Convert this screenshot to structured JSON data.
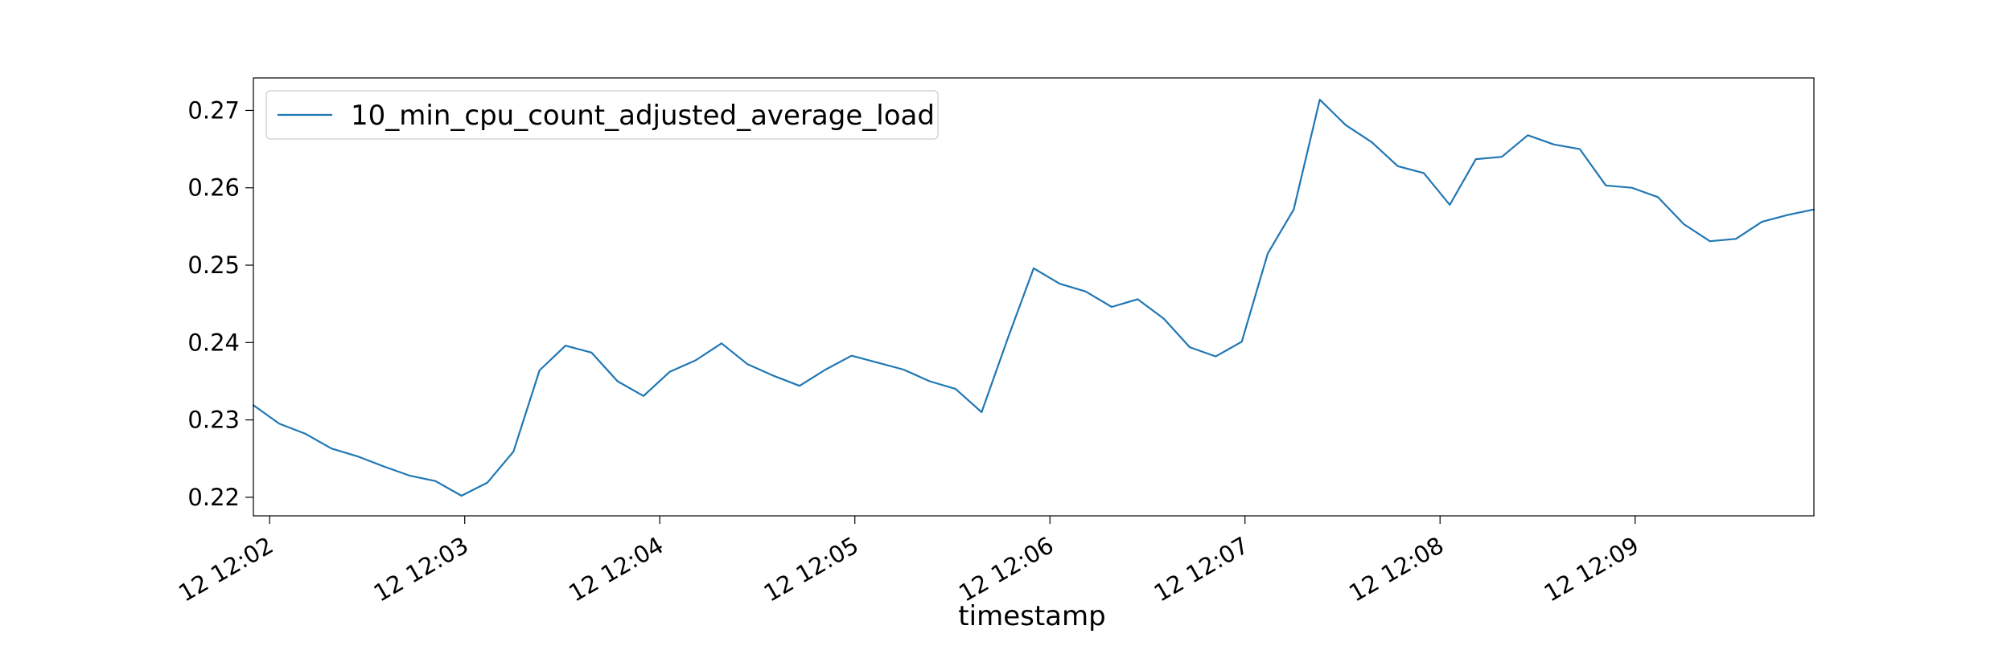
{
  "chart_data": {
    "type": "line",
    "title": "",
    "xlabel": "timestamp",
    "ylabel": "",
    "grid": false,
    "legend_position": "upper left",
    "colors": {
      "series": "#1f77b4",
      "axes": "#000000",
      "background": "#ffffff",
      "legend_border": "#cccccc"
    },
    "xlim": [
      "12:01:55",
      "12:09:55"
    ],
    "ylim": [
      0.2176,
      0.2742
    ],
    "x_ticks": [
      "12:02:00",
      "12:03:00",
      "12:04:00",
      "12:05:00",
      "12:06:00",
      "12:07:00",
      "12:08:00",
      "12:09:00"
    ],
    "x_tick_labels": [
      "12 12:02",
      "12 12:03",
      "12 12:04",
      "12 12:05",
      "12 12:06",
      "12 12:07",
      "12 12:08",
      "12 12:09"
    ],
    "y_ticks": [
      0.22,
      0.23,
      0.24,
      0.25,
      0.26,
      0.27
    ],
    "y_tick_labels": [
      "0.22",
      "0.23",
      "0.24",
      "0.25",
      "0.26",
      "0.27"
    ],
    "series": [
      {
        "name": "10_min_cpu_count_adjusted_average_load",
        "x": [
          "12:01:55",
          "12:02:03",
          "12:02:11",
          "12:02:19",
          "12:02:27",
          "12:02:35",
          "12:02:43",
          "12:02:51",
          "12:02:59",
          "12:03:07",
          "12:03:15",
          "12:03:23",
          "12:03:31",
          "12:03:39",
          "12:03:47",
          "12:03:55",
          "12:04:03",
          "12:04:11",
          "12:04:19",
          "12:04:27",
          "12:04:35",
          "12:04:43",
          "12:04:51",
          "12:04:59",
          "12:05:07",
          "12:05:15",
          "12:05:23",
          "12:05:31",
          "12:05:39",
          "12:05:47",
          "12:05:55",
          "12:06:03",
          "12:06:11",
          "12:06:19",
          "12:06:27",
          "12:06:35",
          "12:06:43",
          "12:06:51",
          "12:06:59",
          "12:07:07",
          "12:07:15",
          "12:07:23",
          "12:07:31",
          "12:07:39",
          "12:07:47",
          "12:07:55",
          "12:08:03",
          "12:08:11",
          "12:08:19",
          "12:08:27",
          "12:08:35",
          "12:08:43",
          "12:08:51",
          "12:08:59",
          "12:09:07",
          "12:09:15",
          "12:09:23",
          "12:09:31",
          "12:09:39",
          "12:09:47",
          "12:09:55"
        ],
        "y": [
          0.2319,
          0.2295,
          0.2282,
          0.2263,
          0.2253,
          0.224,
          0.2228,
          0.2221,
          0.2202,
          0.2219,
          0.2259,
          0.2364,
          0.2396,
          0.2387,
          0.235,
          0.2331,
          0.2362,
          0.2377,
          0.2399,
          0.2372,
          0.2357,
          0.2344,
          0.2365,
          0.2383,
          0.2374,
          0.2365,
          0.235,
          0.234,
          0.231,
          0.2405,
          0.2496,
          0.2476,
          0.2466,
          0.2446,
          0.2456,
          0.2431,
          0.2394,
          0.2382,
          0.2401,
          0.2515,
          0.2572,
          0.2714,
          0.2681,
          0.2659,
          0.2628,
          0.2619,
          0.2578,
          0.2637,
          0.264,
          0.2668,
          0.2656,
          0.265,
          0.2603,
          0.26,
          0.2588,
          0.2553,
          0.2531,
          0.2534,
          0.2556,
          0.2565,
          0.2572
        ]
      }
    ]
  }
}
